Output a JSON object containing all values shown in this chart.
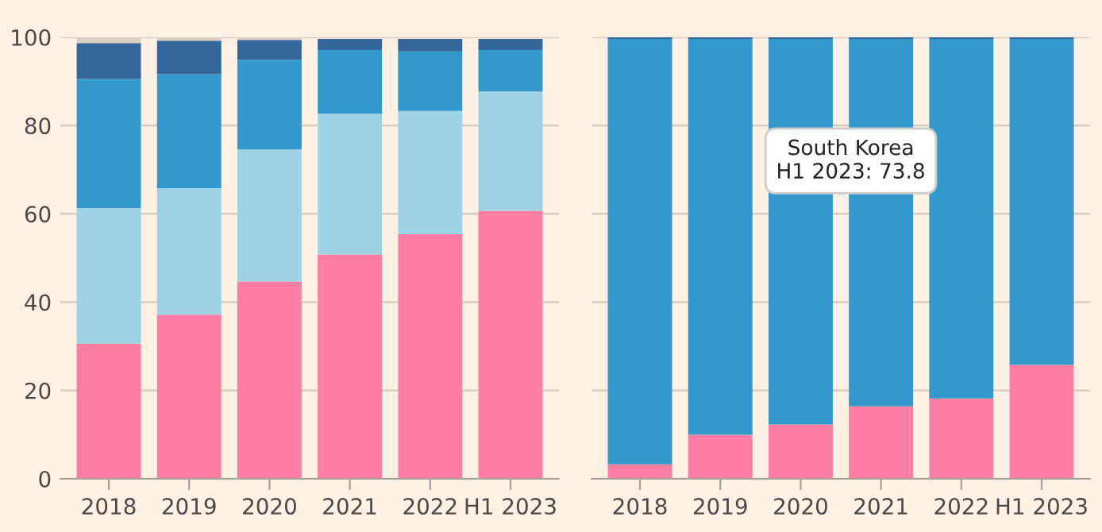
{
  "chart_data": [
    {
      "type": "bar",
      "stacked": true,
      "categories": [
        "2018",
        "2019",
        "2020",
        "2021",
        "2022",
        "H1 2023"
      ],
      "ylim": [
        0,
        100
      ],
      "yticks": [
        0,
        20,
        40,
        60,
        80,
        100
      ],
      "grid": "y",
      "series": [
        {
          "color": "#ff7ea4",
          "values": [
            30.6,
            37.2,
            44.7,
            50.8,
            55.4,
            60.7
          ]
        },
        {
          "color": "#9dd3e4",
          "values": [
            30.7,
            28.6,
            29.9,
            31.9,
            27.9,
            27.0
          ]
        },
        {
          "color": "#3399cc",
          "values": [
            29.3,
            25.8,
            20.3,
            14.4,
            13.5,
            9.4
          ]
        },
        {
          "color": "#336699",
          "values": [
            8.1,
            7.6,
            4.5,
            2.5,
            2.8,
            2.5
          ]
        },
        {
          "color": "#d9cfc5",
          "values": [
            1.3,
            0.8,
            0.6,
            null,
            null,
            null
          ]
        }
      ]
    },
    {
      "type": "bar",
      "stacked": true,
      "categories": [
        "2018",
        "2019",
        "2020",
        "2021",
        "2022",
        "H1 2023"
      ],
      "ylim": [
        0,
        100
      ],
      "yticks": [
        0,
        20,
        40,
        60,
        80,
        100
      ],
      "grid": "y",
      "tick_labels": "x",
      "series": [
        {
          "color": "#ff7ea4",
          "values": [
            3.3,
            10.0,
            12.3,
            16.4,
            18.2,
            25.8
          ]
        },
        {
          "color": "#3399cc",
          "values": [
            96.3,
            89.6,
            87.3,
            83.2,
            81.4,
            73.8
          ]
        },
        {
          "color": "#336699",
          "values": [
            0.4,
            0.4,
            0.4,
            0.4,
            0.4,
            0.4
          ]
        }
      ],
      "annotations": [
        "South Korea\nH1 2023: 73.8"
      ]
    }
  ]
}
